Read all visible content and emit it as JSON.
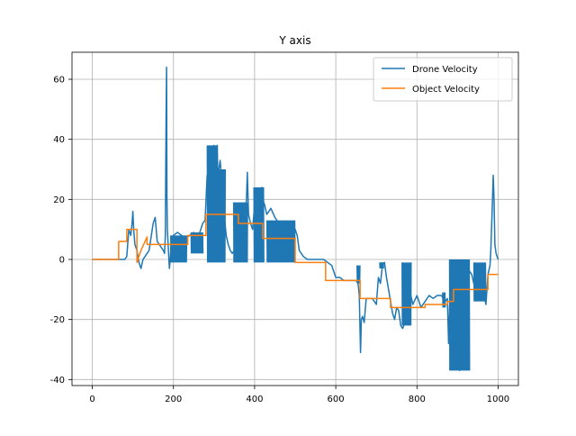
{
  "chart_data": {
    "type": "line",
    "title": "Y axis",
    "xlabel": "",
    "ylabel": "",
    "xlim": [
      -50,
      1050
    ],
    "ylim": [
      -42,
      69
    ],
    "xticks": [
      0,
      200,
      400,
      600,
      800,
      1000
    ],
    "yticks": [
      -40,
      -20,
      0,
      20,
      40,
      60
    ],
    "grid": true,
    "legend_position": "top-right",
    "series": [
      {
        "name": "Drone Velocity",
        "color": "#1f77b4",
        "points": [
          [
            0,
            0
          ],
          [
            80,
            0
          ],
          [
            85,
            1
          ],
          [
            90,
            10
          ],
          [
            95,
            8
          ],
          [
            98,
            12
          ],
          [
            100,
            16
          ],
          [
            102,
            10
          ],
          [
            105,
            5
          ],
          [
            110,
            3
          ],
          [
            115,
            -1
          ],
          [
            120,
            -3
          ],
          [
            125,
            0
          ],
          [
            130,
            1
          ],
          [
            140,
            3
          ],
          [
            150,
            12
          ],
          [
            155,
            14
          ],
          [
            160,
            6
          ],
          [
            165,
            5
          ],
          [
            170,
            4
          ],
          [
            175,
            3
          ],
          [
            178,
            2
          ],
          [
            180,
            8
          ],
          [
            182,
            50
          ],
          [
            183,
            64
          ],
          [
            184,
            20
          ],
          [
            185,
            10
          ],
          [
            188,
            2
          ],
          [
            190,
            -3
          ],
          [
            192,
            0
          ],
          [
            195,
            7
          ],
          [
            200,
            8
          ],
          [
            210,
            9
          ],
          [
            220,
            8
          ],
          [
            230,
            7
          ],
          [
            240,
            8
          ],
          [
            250,
            9
          ],
          [
            255,
            8
          ],
          [
            265,
            9
          ],
          [
            272,
            12
          ],
          [
            278,
            13
          ],
          [
            283,
            28
          ],
          [
            285,
            15
          ],
          [
            290,
            24
          ],
          [
            295,
            30
          ],
          [
            300,
            38
          ],
          [
            302,
            26
          ],
          [
            305,
            18
          ],
          [
            308,
            38
          ],
          [
            310,
            22
          ],
          [
            312,
            30
          ],
          [
            315,
            33
          ],
          [
            318,
            28
          ],
          [
            320,
            22
          ],
          [
            325,
            15
          ],
          [
            330,
            8
          ],
          [
            335,
            5
          ],
          [
            340,
            3
          ],
          [
            345,
            2
          ],
          [
            350,
            3
          ],
          [
            355,
            3
          ],
          [
            360,
            2
          ],
          [
            365,
            4
          ],
          [
            370,
            9
          ],
          [
            375,
            12
          ],
          [
            380,
            20
          ],
          [
            382,
            29
          ],
          [
            385,
            15
          ],
          [
            390,
            12
          ],
          [
            395,
            10
          ],
          [
            400,
            18
          ],
          [
            405,
            20
          ],
          [
            410,
            21
          ],
          [
            415,
            22
          ],
          [
            418,
            24
          ],
          [
            420,
            20
          ],
          [
            425,
            18
          ],
          [
            430,
            15
          ],
          [
            440,
            17
          ],
          [
            450,
            14
          ],
          [
            460,
            12
          ],
          [
            470,
            12
          ],
          [
            480,
            12
          ],
          [
            490,
            12
          ],
          [
            495,
            11
          ],
          [
            500,
            10
          ],
          [
            505,
            8
          ],
          [
            510,
            3
          ],
          [
            520,
            1
          ],
          [
            530,
            0
          ],
          [
            540,
            0
          ],
          [
            550,
            0
          ],
          [
            560,
            0
          ],
          [
            570,
            0
          ],
          [
            580,
            -1
          ],
          [
            590,
            -2
          ],
          [
            600,
            -6
          ],
          [
            610,
            -6
          ],
          [
            620,
            -7
          ],
          [
            630,
            -7
          ],
          [
            640,
            -7
          ],
          [
            650,
            -7
          ],
          [
            655,
            -8
          ],
          [
            658,
            -12
          ],
          [
            660,
            -25
          ],
          [
            661,
            -31
          ],
          [
            663,
            -20
          ],
          [
            666,
            -19
          ],
          [
            670,
            -21
          ],
          [
            675,
            -13
          ],
          [
            680,
            -13
          ],
          [
            690,
            -13
          ],
          [
            700,
            -15
          ],
          [
            705,
            -6
          ],
          [
            710,
            -8
          ],
          [
            715,
            -2
          ],
          [
            720,
            -1
          ],
          [
            725,
            -6
          ],
          [
            730,
            -10
          ],
          [
            735,
            -14
          ],
          [
            740,
            -18
          ],
          [
            745,
            -20
          ],
          [
            750,
            -16
          ],
          [
            755,
            -17
          ],
          [
            760,
            -22
          ],
          [
            765,
            -23
          ],
          [
            770,
            -21
          ],
          [
            775,
            -18
          ],
          [
            780,
            -16
          ],
          [
            785,
            -12
          ],
          [
            790,
            -15
          ],
          [
            800,
            -12
          ],
          [
            810,
            -16
          ],
          [
            820,
            -14
          ],
          [
            830,
            -12
          ],
          [
            840,
            -13
          ],
          [
            850,
            -12
          ],
          [
            860,
            -12
          ],
          [
            870,
            -14
          ],
          [
            875,
            -13
          ],
          [
            878,
            -28
          ],
          [
            880,
            -18
          ],
          [
            882,
            -6
          ],
          [
            885,
            -12
          ],
          [
            890,
            -15
          ],
          [
            895,
            -30
          ],
          [
            900,
            -35
          ],
          [
            905,
            -37
          ],
          [
            910,
            -34
          ],
          [
            915,
            -24
          ],
          [
            920,
            -10
          ],
          [
            925,
            -6
          ],
          [
            930,
            -4
          ],
          [
            935,
            -5
          ],
          [
            940,
            -8
          ],
          [
            945,
            -10
          ],
          [
            950,
            -8
          ],
          [
            955,
            -9
          ],
          [
            960,
            -10
          ],
          [
            965,
            -12
          ],
          [
            970,
            -15
          ],
          [
            975,
            -5
          ],
          [
            980,
            -2
          ],
          [
            982,
            3
          ],
          [
            985,
            15
          ],
          [
            988,
            28
          ],
          [
            990,
            20
          ],
          [
            992,
            5
          ],
          [
            995,
            2
          ],
          [
            1000,
            0
          ]
        ],
        "bursts": [
          [
            193,
            233,
            -1,
            8
          ],
          [
            243,
            273,
            2,
            9
          ],
          [
            283,
            308,
            -1,
            38
          ],
          [
            308,
            328,
            -1,
            30
          ],
          [
            348,
            383,
            -1,
            19
          ],
          [
            398,
            423,
            -1,
            24
          ],
          [
            430,
            500,
            -1,
            13
          ],
          [
            652,
            660,
            -8,
            -2
          ],
          [
            708,
            718,
            -3,
            -1
          ],
          [
            763,
            786,
            -22,
            -1
          ],
          [
            863,
            870,
            -16,
            -11
          ],
          [
            880,
            930,
            -37,
            0
          ],
          [
            940,
            970,
            -14,
            -1
          ]
        ]
      },
      {
        "name": "Object Velocity",
        "color": "#ff7f0e",
        "points": [
          [
            0,
            0
          ],
          [
            65,
            0
          ],
          [
            65,
            6
          ],
          [
            85,
            6
          ],
          [
            85,
            10
          ],
          [
            100,
            10
          ],
          [
            110,
            10
          ],
          [
            110,
            -1
          ],
          [
            120,
            3
          ],
          [
            135,
            7.5
          ],
          [
            135,
            5
          ],
          [
            150,
            5
          ],
          [
            235,
            5
          ],
          [
            235,
            8
          ],
          [
            280,
            8
          ],
          [
            280,
            15
          ],
          [
            360,
            15
          ],
          [
            360,
            12
          ],
          [
            420,
            12
          ],
          [
            420,
            7
          ],
          [
            500,
            7
          ],
          [
            500,
            -1
          ],
          [
            575,
            -1
          ],
          [
            575,
            -7
          ],
          [
            660,
            -7
          ],
          [
            660,
            -13
          ],
          [
            735,
            -13
          ],
          [
            735,
            -16
          ],
          [
            820,
            -16
          ],
          [
            820,
            -15
          ],
          [
            875,
            -15
          ],
          [
            875,
            -14
          ],
          [
            890,
            -14
          ],
          [
            890,
            -10
          ],
          [
            975,
            -10
          ],
          [
            975,
            -5
          ],
          [
            1000,
            -5
          ]
        ]
      }
    ]
  }
}
